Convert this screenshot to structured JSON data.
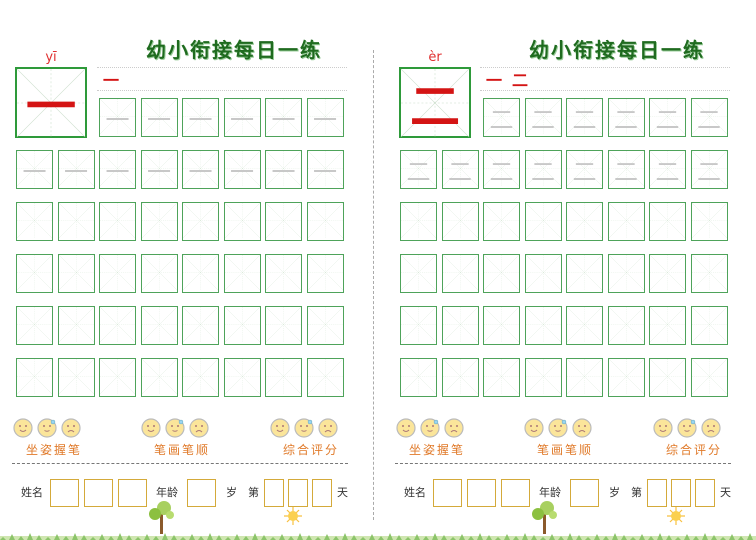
{
  "title": "幼小衔接每日一练",
  "pages": [
    {
      "pinyin": "yī",
      "character": "一",
      "stroke_order": [
        "一"
      ],
      "trace_rows": [
        6,
        8
      ],
      "empty_rows": 4
    },
    {
      "pinyin": "èr",
      "character": "二",
      "stroke_order": [
        "一",
        "二"
      ],
      "trace_rows": [
        6,
        8
      ],
      "empty_rows": 4
    }
  ],
  "ratings": [
    {
      "label": "坐姿握笔"
    },
    {
      "label": "笔画笔顺"
    },
    {
      "label": "综合评分"
    }
  ],
  "face_icons": [
    "smile-face-icon",
    "neutral-face-icon",
    "sad-face-icon"
  ],
  "info": {
    "name_label": "姓名",
    "age_label": "年龄",
    "age_unit": "岁",
    "day_prefix": "第",
    "day_suffix": "天"
  },
  "colors": {
    "title": "#1f6b1f",
    "box_border": "#4ea35a",
    "model_char": "#d41414",
    "rating_label": "#e07a2a",
    "info_box": "#d4aa3a"
  }
}
